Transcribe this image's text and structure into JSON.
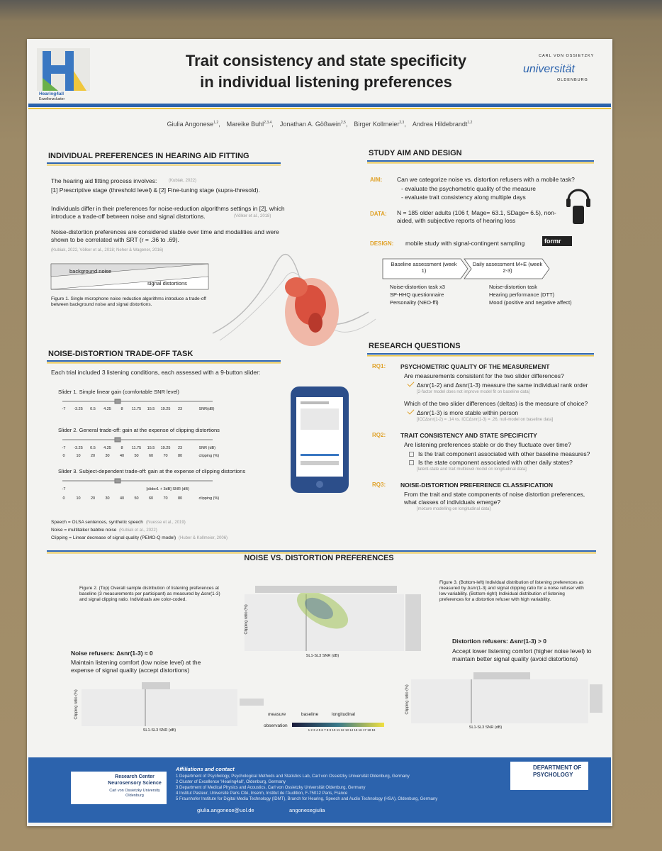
{
  "header": {
    "logo_left": "Hearing4all",
    "logo_left_sub": "Exzellenzcluster",
    "title_line1": "Trait consistency and state specificity",
    "title_line2": "in individual listening preferences",
    "logo_right_top": "CARL VON OSSIETZKY",
    "logo_right_main": "universität",
    "logo_right_bottom": "OLDENBURG"
  },
  "authors": [
    {
      "name": "Giulia Angonese",
      "aff": "1,2"
    },
    {
      "name": "Mareike Buhl",
      "aff": "2,3,4"
    },
    {
      "name": "Jonathan A. Gößwein",
      "aff": "2,5"
    },
    {
      "name": "Birger Kollmeier",
      "aff": "2,3"
    },
    {
      "name": "Andrea Hildebrandt",
      "aff": "1,2"
    }
  ],
  "intro": {
    "title": "INDIVIDUAL PREFERENCES IN HEARING AID FITTING",
    "p1": "The hearing aid fitting process involves:",
    "p1_cite": "(Kubiak, 2022)",
    "p1_list": "[1] Prescriptive stage (threshold level) & [2] Fine-tuning stage (supra-thresold).",
    "p2": "Individuals differ in their preferences for noise-reduction algorithms settings in [2], which introduce a trade-off between noise and signal distortions.",
    "p2_cite": "(Völker et al., 2018)",
    "p3": "Noise-distortion preferences are considered stable over time and modalities and were shown to be correlated with SRT (r = .36 to .69).",
    "p3_cite": "(Kubiak, 2022, Völker et al., 2018; Neher & Wagener, 2016)",
    "fig_noise": "background noise",
    "fig_distortion": "signal distortions",
    "caption": "Figure 1. Single microphone noise reduction algorithms introduce a trade-off between background noise and signal distortions."
  },
  "task": {
    "title": "NOISE-DISTORTION TRADE-OFF TASK",
    "intro": "Each trial included 3 listening conditions, each assessed with a 9-button slider:",
    "sliders": [
      {
        "label": "Slider 1. Simple linear gain (comfortable SNR level)",
        "ticks": [
          "-7",
          "-3.25",
          "0.5",
          "4.25",
          "8",
          "11.75",
          "15.5",
          "19.25",
          "23",
          "SNR(dB)"
        ]
      },
      {
        "label": "Slider 2. General trade-off: gain at the expense of clipping distortions",
        "ticks": [
          "-7",
          "-3.25",
          "0.5",
          "4.25",
          "8",
          "11.75",
          "15.5",
          "19.25",
          "23",
          "SNR (dB)"
        ],
        "ticks2": [
          "0",
          "10",
          "20",
          "30",
          "40",
          "50",
          "60",
          "70",
          "80",
          "clipping (%)"
        ]
      },
      {
        "label": "Slider 3. Subject-dependent trade-off: gain at the expense of clipping distortions",
        "ticks": [
          "-7",
          "[slider1 + 3dB] SNR (dB)"
        ],
        "ticks2": [
          "0",
          "10",
          "20",
          "30",
          "40",
          "50",
          "60",
          "70",
          "80",
          "clipping (%)"
        ]
      }
    ],
    "notes": [
      {
        "text": "Speech = OLSA sentences, synthetic speech",
        "cite": "(Nuesse et al., 2019)"
      },
      {
        "text": "Noise = multitalker babble noise",
        "cite": "(Kubiak et al., 2022)"
      },
      {
        "text": "Clipping = Linear decrease of signal quality (PEMO-Q model)",
        "cite": "(Huber & Kollmeier, 2006)"
      }
    ]
  },
  "aim": {
    "title": "STUDY AIM AND DESIGN",
    "aim_label": "AIM:",
    "aim_text": "Can we categorize noise vs. distortion refusers with a mobile task?",
    "aim_bullets": [
      "- evaluate the psychometric quality of the measure",
      "- evaluate trait consistency along multiple days"
    ],
    "data_label": "DATA:",
    "data_text": "N = 185 older adults (106 f, Mage= 63.1, SDage= 6.5), non-aided, with subjective reports of hearing loss",
    "design_label": "DESIGN:",
    "design_text": "mobile study with signal-contingent sampling",
    "design_logo": "formr",
    "phases": [
      {
        "name": "Baseline assessment (week 1)",
        "items": [
          "Noise-distortion task x3",
          "SP-HHQ questionnaire",
          "Personality (NEO-ffi)"
        ]
      },
      {
        "name": "Daily assessment M+E (week 2-3)",
        "items": [
          "Noise-distortion task",
          "Hearing performance (DTT)",
          "Mood (positive and negative affect)"
        ]
      }
    ]
  },
  "rq": {
    "title": "RESEARCH QUESTIONS",
    "items": [
      {
        "label": "RQ1:",
        "head": "PSYCHOMETRIC QUALITY OF THE MEASUREMENT",
        "questions": [
          {
            "q": "Are measurements consistent for the two slider differences?",
            "answers": [
              "Δsnr(1-2) and Δsnr(1-3) measure the same individual rank order"
            ],
            "note": "[2-factor model does not improve model fit on baseline data]"
          },
          {
            "q": "Which of the two slider differences (deltas) is the measure of choice?",
            "answers": [
              "Δsnr(1-3) is more stable within person"
            ],
            "note": "[ICCΔsnr(1-2) = .14 vs. ICCΔsnr(1-3) = .26, null-model on baseline data]"
          }
        ]
      },
      {
        "label": "RQ2:",
        "head": "TRAIT CONSISTENCY AND STATE SPECIFICITY",
        "questions": [
          {
            "q": "Are listening preferences stable or do they fluctuate over time?",
            "open_questions": [
              "Is the trait component associated with other baseline measures?",
              "Is the state component associated with other daily states?"
            ],
            "note": "[latent-state and trait multilevel model on longitudinal data]"
          }
        ]
      },
      {
        "label": "RQ3:",
        "head": "NOISE-DISTORTION PREFERENCE CLASSIFICATION",
        "questions": [
          {
            "q": "From the trait and state components of noise distortion preferences, what classes of individuals emerge?",
            "note": "[mixture modelling on longitudinal data]"
          }
        ]
      }
    ]
  },
  "results": {
    "title": "NOISE VS. DISTORTION PREFERENCES",
    "fig2_caption": "Figure 2. (Top) Overall sample distribution of listening preferences at baseline (3 measurements per participant) as measured by Δsnr(1-3) and signal clipping ratio. Individuals are color-coded.",
    "fig3_caption": "Figure 3. (Bottom-left) Individual distribution of listening preferences as measured by Δsnr(1-3) and signal clipping ratio for a noise refuser with low variability. (Bottom-right) Individual distribution of listening preferences for a distortion refuser with high variability.",
    "noise_head": "Noise refusers: Δsnr(1-3) ≈ 0",
    "noise_text": "Maintain listening comfort (low noise level) at the expense of signal quality (accept distortions)",
    "dist_head": "Distortion refusers: Δsnr(1-3) > 0",
    "dist_text": "Accept lower listening comfort (higher noise level) to maintain better signal quality (avoid distortions)",
    "x_label": "SL1-SL3 SNR (dB)",
    "y_label": "Clipping ratio (%)",
    "legend_measure": "measure",
    "legend_baseline": "baseline",
    "legend_longitudinal": "longitudinal",
    "legend_observation": "observation",
    "observation_ticks": "1 2 3 4 5 6 7 8 9 10 11 12 13 14 15 16 17 18 19"
  },
  "footer": {
    "affil_title": "Affiliations and contact",
    "affiliations": [
      "1 Department of Psychology, Psychological Methods and Statistics Lab, Carl von Ossietzky Universität Oldenburg, Germany",
      "2 Cluster of Excellence 'Hearing4all', Oldenburg, Germany",
      "3 Department of Medical Physics and Acoustics, Carl von Ossietzky Universität Oldenburg, Germany",
      "4 Institut Pasteur, Université Paris Cité, Inserm, Institut de l'Audition, F-75012 Paris, France",
      "5 Fraunhofer Institute for Digital Media Technology (IDMT), Branch for Hearing, Speech and Audio Technology (HSA), Oldenburg, Germany"
    ],
    "center_name": "Research Center Neurosensory Science",
    "center_uni": "Carl von Ossietzky University Oldenburg",
    "dept": "DEPARTMENT OF PSYCHOLOGY",
    "email": "giulia.angonese@uol.de",
    "twitter": "angonesegiulia"
  }
}
